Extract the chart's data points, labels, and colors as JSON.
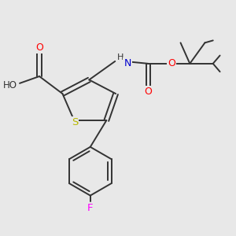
{
  "bg_color": "#e8e8e8",
  "atom_colors": {
    "O": "#ff0000",
    "N": "#0000cd",
    "S": "#b8b800",
    "F": "#ff00ff",
    "C": "#333333",
    "H": "#777777"
  }
}
